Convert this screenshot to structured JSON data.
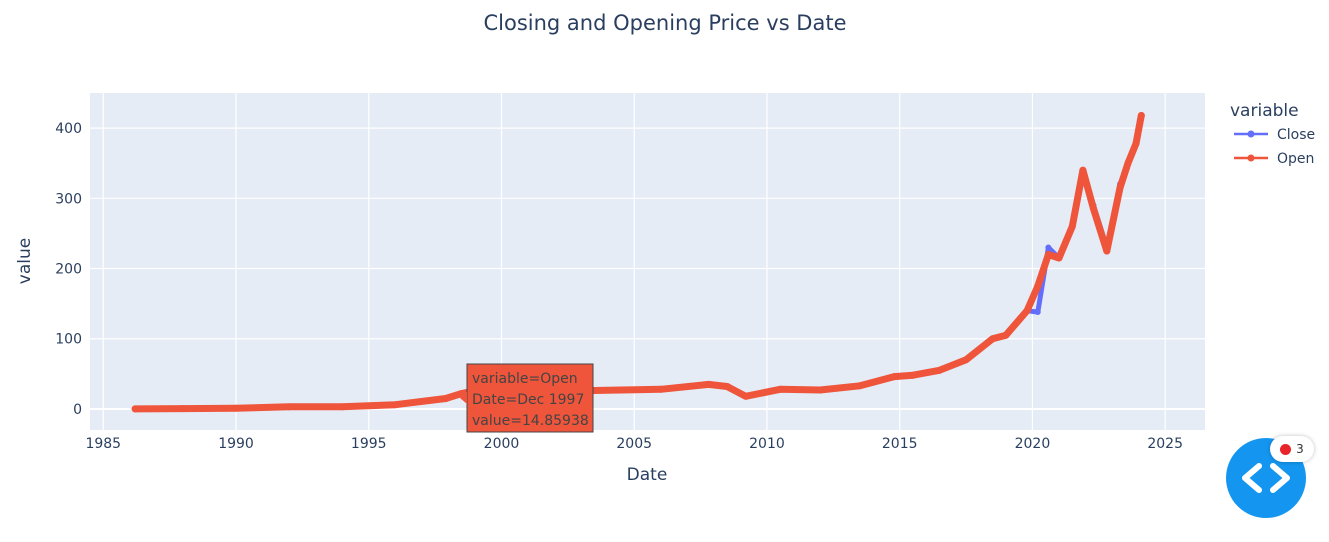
{
  "chart_data": {
    "type": "line",
    "title": "Closing and Opening Price vs Date",
    "xlabel": "Date",
    "ylabel": "value",
    "xlim": [
      1984.5,
      2026.5
    ],
    "ylim": [
      -30,
      450
    ],
    "x_ticks": [
      1985,
      1990,
      1995,
      2000,
      2005,
      2010,
      2015,
      2020,
      2025
    ],
    "y_ticks": [
      0,
      100,
      200,
      300,
      400
    ],
    "grid": true,
    "legend": {
      "title": "variable",
      "position": "right"
    },
    "series": [
      {
        "name": "Close",
        "color": "#636efa",
        "x": [
          1986.2,
          1988,
          1990,
          1992,
          1994,
          1996,
          1997.9,
          1998.5,
          1999.5,
          2000.0,
          2000.5,
          2001.5,
          2003,
          2004.5,
          2006,
          2007.8,
          2008.5,
          2009.2,
          2010.5,
          2012,
          2013.5,
          2014.8,
          2015.5,
          2016.5,
          2017.5,
          2018.5,
          2019.0,
          2019.8,
          2020.2,
          2020.6,
          2021.0,
          2021.5,
          2021.9,
          2022.3,
          2022.8,
          2023.3,
          2023.6,
          2023.9,
          2024.1
        ],
        "values": [
          0.1,
          0.5,
          1,
          3,
          3,
          6,
          14,
          22,
          30,
          58,
          28,
          24,
          26,
          27,
          28,
          35,
          32,
          18,
          28,
          27,
          33,
          46,
          48,
          55,
          70,
          100,
          105,
          140,
          138,
          230,
          215,
          260,
          340,
          290,
          230,
          320,
          350,
          380,
          415
        ]
      },
      {
        "name": "Open",
        "color": "#ef553b",
        "x": [
          1986.2,
          1988,
          1990,
          1992,
          1994,
          1996,
          1997.9,
          1998.5,
          1999.5,
          2000.0,
          2000.5,
          2001.5,
          2003,
          2004.5,
          2006,
          2007.8,
          2008.5,
          2009.2,
          2010.5,
          2012,
          2013.5,
          2014.8,
          2015.5,
          2016.5,
          2017.5,
          2018.5,
          2019.0,
          2019.8,
          2020.2,
          2020.6,
          2021.0,
          2021.5,
          2021.9,
          2022.3,
          2022.8,
          2023.3,
          2023.6,
          2023.9,
          2024.1
        ],
        "values": [
          0.1,
          0.5,
          1,
          3,
          3,
          6,
          14.85938,
          22,
          30,
          45,
          28,
          24,
          26,
          27,
          28,
          35,
          32,
          18,
          28,
          27,
          33,
          46,
          48,
          55,
          70,
          100,
          105,
          140,
          175,
          220,
          215,
          260,
          340,
          285,
          225,
          315,
          350,
          378,
          418
        ]
      }
    ],
    "hover": {
      "series": "Open",
      "lines": [
        "variable=Open",
        "Date=Dec 1997",
        "value=14.85938"
      ],
      "x": 1997.9,
      "y": 14.85938
    }
  },
  "widget": {
    "badge_count": "3",
    "icon": "code-brackets-icon"
  }
}
